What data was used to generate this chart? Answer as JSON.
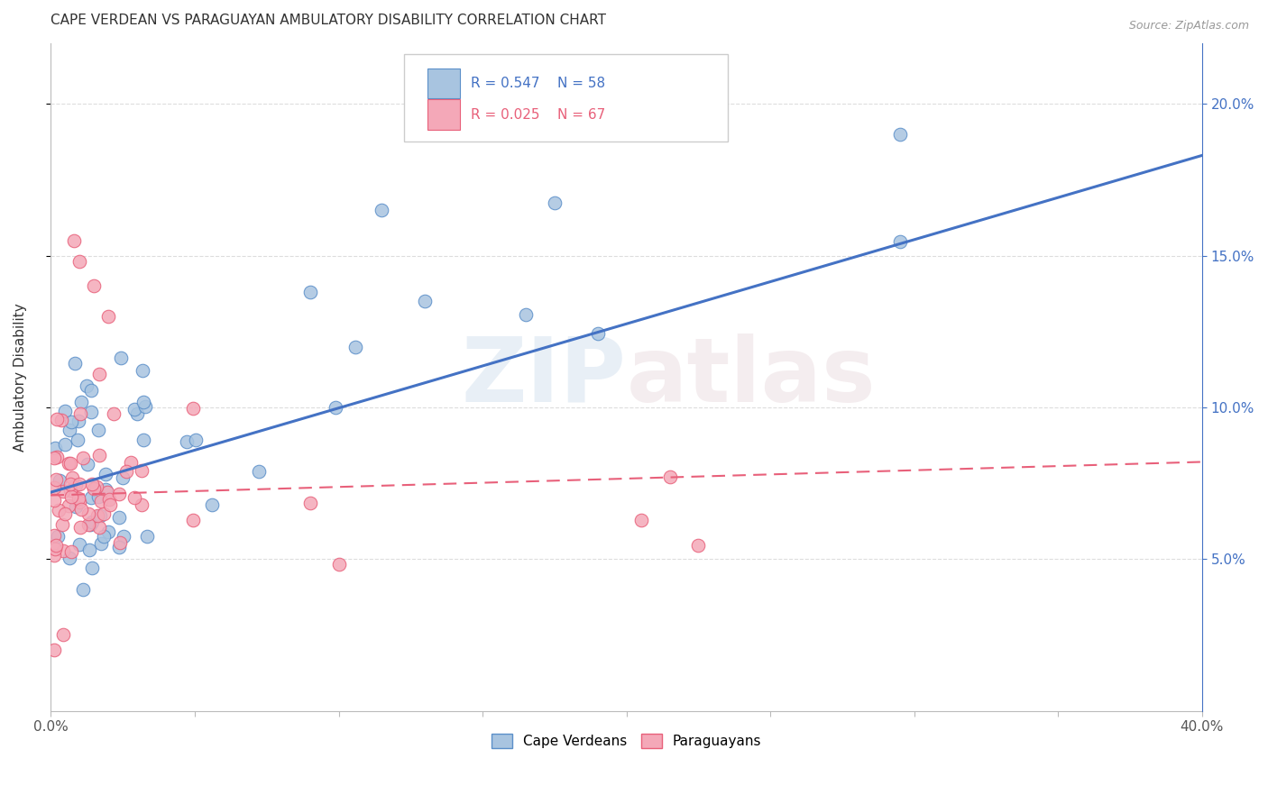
{
  "title": "CAPE VERDEAN VS PARAGUAYAN AMBULATORY DISABILITY CORRELATION CHART",
  "source": "Source: ZipAtlas.com",
  "ylabel": "Ambulatory Disability",
  "xmin": 0.0,
  "xmax": 0.4,
  "ymin": 0.0,
  "ymax": 0.22,
  "watermark": "ZIPatlas",
  "legend_blue_r": "R = 0.547",
  "legend_blue_n": "N = 58",
  "legend_pink_r": "R = 0.025",
  "legend_pink_n": "N = 67",
  "legend_label_blue": "Cape Verdeans",
  "legend_label_pink": "Paraguayans",
  "blue_scatter_color": "#a8c4e0",
  "pink_scatter_color": "#f4a8b8",
  "blue_edge_color": "#5b8fc9",
  "pink_edge_color": "#e8607a",
  "line_blue_color": "#4472c4",
  "line_pink_color": "#e8607a",
  "background_color": "#ffffff",
  "grid_color": "#dddddd",
  "right_axis_color": "#4472c4",
  "cv_line_start_y": 0.072,
  "cv_line_end_y": 0.183,
  "par_line_start_y": 0.071,
  "par_line_end_y": 0.082
}
